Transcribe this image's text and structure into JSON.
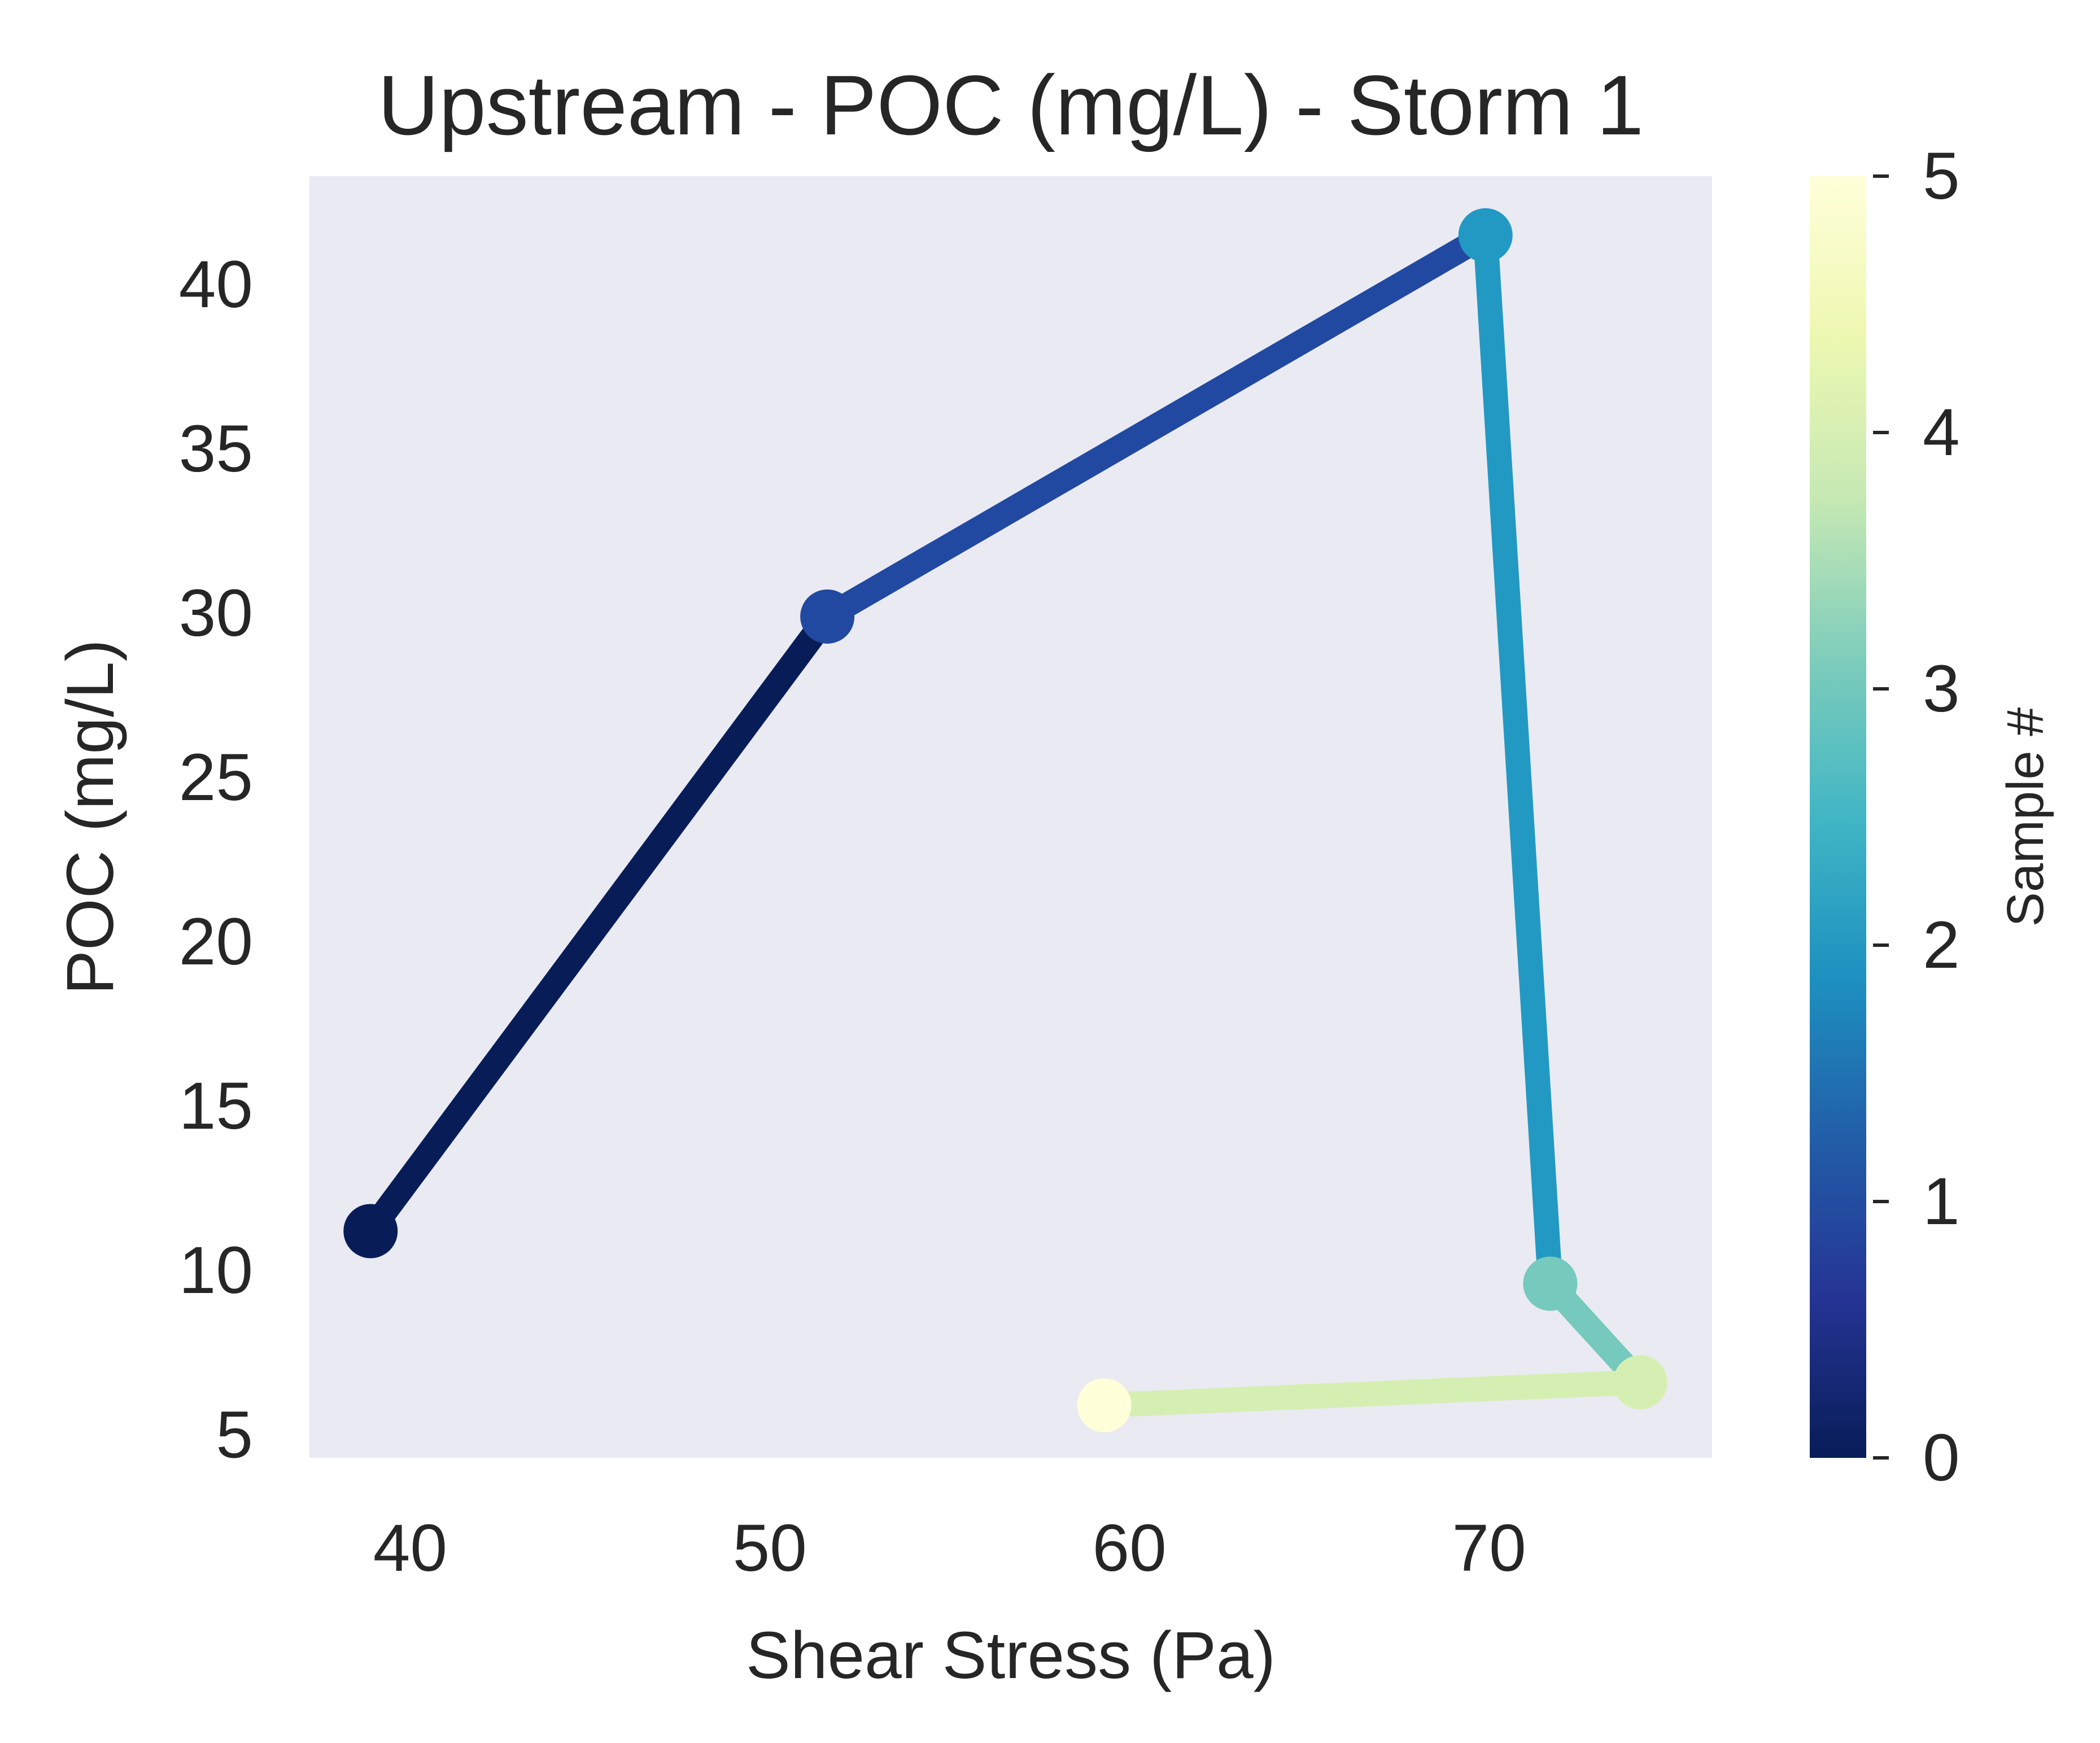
{
  "chart_data": {
    "type": "line",
    "title": "Upstream - POC (mg/L) - Storm 1",
    "xlabel": "Shear Stress (Pa)",
    "ylabel": "POC (mg/L)",
    "xlim": [
      37.2,
      76.2
    ],
    "ylim": [
      4.3,
      43.3
    ],
    "xticks": [
      40,
      50,
      60,
      70
    ],
    "yticks": [
      5,
      10,
      15,
      20,
      25,
      30,
      35,
      40
    ],
    "grid": false,
    "background": "#eaeaf2",
    "points": [
      {
        "sample": 0,
        "x": 38.9,
        "y": 11.2
      },
      {
        "sample": 1,
        "x": 51.6,
        "y": 29.9
      },
      {
        "sample": 2,
        "x": 69.9,
        "y": 41.5
      },
      {
        "sample": 3,
        "x": 71.7,
        "y": 9.6
      },
      {
        "sample": 4,
        "x": 74.2,
        "y": 6.6
      },
      {
        "sample": 5,
        "x": 59.3,
        "y": 5.9
      }
    ],
    "segment_colors": [
      "#081d58",
      "#2249a1",
      "#2299c3",
      "#75c9bd",
      "#d5efb3"
    ],
    "point_colors": [
      "#081d58",
      "#2249a1",
      "#2299c3",
      "#75c9bd",
      "#d5efb3",
      "#ffffd9"
    ],
    "colorbar": {
      "label": "Sample #",
      "min": 0,
      "max": 5,
      "ticks": [
        0,
        1,
        2,
        3,
        4,
        5
      ],
      "colormap": "YlGnBu_r",
      "stops": [
        "#081d58",
        "#253494",
        "#225ea8",
        "#1d91c0",
        "#41b6c4",
        "#7fcdbb",
        "#c7e9b4",
        "#edf8b1",
        "#ffffd9"
      ]
    }
  }
}
